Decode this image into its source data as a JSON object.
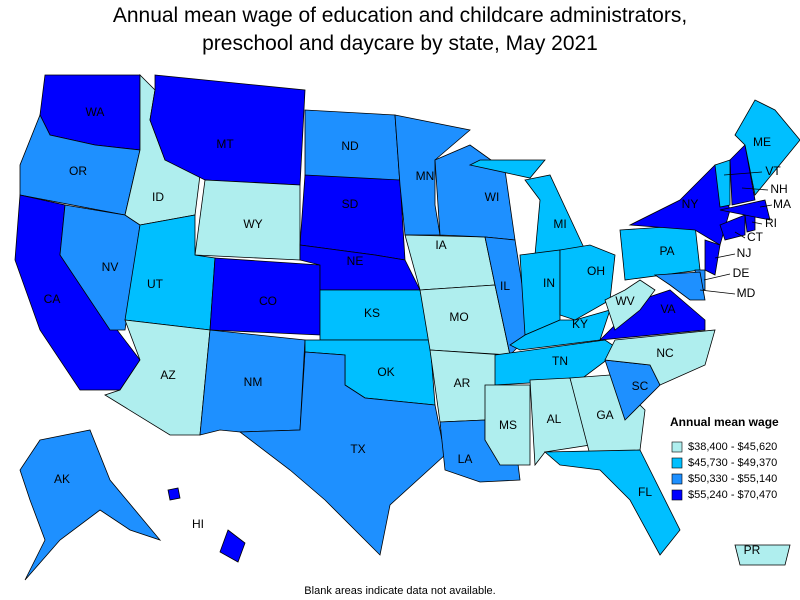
{
  "title": "Annual mean wage of education and childcare administrators, preschool and daycare by state, May 2021",
  "note": "Blank areas indicate data not available.",
  "legend": {
    "title": "Annual mean wage",
    "items": [
      {
        "label": "$38,400 - $45,620",
        "color": "#afeeee"
      },
      {
        "label": "$45,730 - $49,370",
        "color": "#00bfff"
      },
      {
        "label": "$50,330 - $55,140",
        "color": "#1e90ff"
      },
      {
        "label": "$55,240 - $70,470",
        "color": "#0000ff"
      }
    ]
  },
  "states": [
    {
      "label": "WA",
      "color": "#0000ff"
    },
    {
      "label": "OR",
      "color": "#1e90ff"
    },
    {
      "label": "CA",
      "color": "#0000ff"
    },
    {
      "label": "NV",
      "color": "#1e90ff"
    },
    {
      "label": "ID",
      "color": "#afeeee"
    },
    {
      "label": "MT",
      "color": "#0000ff"
    },
    {
      "label": "WY",
      "color": "#afeeee"
    },
    {
      "label": "UT",
      "color": "#00bfff"
    },
    {
      "label": "AZ",
      "color": "#afeeee"
    },
    {
      "label": "CO",
      "color": "#0000ff"
    },
    {
      "label": "NM",
      "color": "#1e90ff"
    },
    {
      "label": "ND",
      "color": "#1e90ff"
    },
    {
      "label": "SD",
      "color": "#0000ff"
    },
    {
      "label": "NE",
      "color": "#0000ff"
    },
    {
      "label": "KS",
      "color": "#00bfff"
    },
    {
      "label": "OK",
      "color": "#00bfff"
    },
    {
      "label": "TX",
      "color": "#1e90ff"
    },
    {
      "label": "MN",
      "color": "#1e90ff"
    },
    {
      "label": "IA",
      "color": "#afeeee"
    },
    {
      "label": "MO",
      "color": "#afeeee"
    },
    {
      "label": "AR",
      "color": "#afeeee"
    },
    {
      "label": "LA",
      "color": "#1e90ff"
    },
    {
      "label": "WI",
      "color": "#1e90ff"
    },
    {
      "label": "IL",
      "color": "#1e90ff"
    },
    {
      "label": "MI",
      "color": "#00bfff"
    },
    {
      "label": "IN",
      "color": "#00bfff"
    },
    {
      "label": "OH",
      "color": "#00bfff"
    },
    {
      "label": "KY",
      "color": "#00bfff"
    },
    {
      "label": "TN",
      "color": "#00bfff"
    },
    {
      "label": "MS",
      "color": "#afeeee"
    },
    {
      "label": "AL",
      "color": "#afeeee"
    },
    {
      "label": "GA",
      "color": "#afeeee"
    },
    {
      "label": "FL",
      "color": "#00bfff"
    },
    {
      "label": "SC",
      "color": "#1e90ff"
    },
    {
      "label": "NC",
      "color": "#afeeee"
    },
    {
      "label": "VA",
      "color": "#0000ff"
    },
    {
      "label": "WV",
      "color": "#afeeee"
    },
    {
      "label": "PA",
      "color": "#00bfff"
    },
    {
      "label": "NY",
      "color": "#0000ff"
    },
    {
      "label": "NJ",
      "color": "#0000ff"
    },
    {
      "label": "DE",
      "color": "#1e90ff"
    },
    {
      "label": "MD",
      "color": "#1e90ff"
    },
    {
      "label": "CT",
      "color": "#0000ff"
    },
    {
      "label": "RI",
      "color": "#0000ff"
    },
    {
      "label": "MA",
      "color": "#0000ff"
    },
    {
      "label": "VT",
      "color": "#00bfff"
    },
    {
      "label": "NH",
      "color": "#0000ff"
    },
    {
      "label": "ME",
      "color": "#00bfff"
    },
    {
      "label": "AK",
      "color": "#1e90ff"
    },
    {
      "label": "HI",
      "color": "#0000ff"
    },
    {
      "label": "PR",
      "color": "#afeeee"
    }
  ]
}
